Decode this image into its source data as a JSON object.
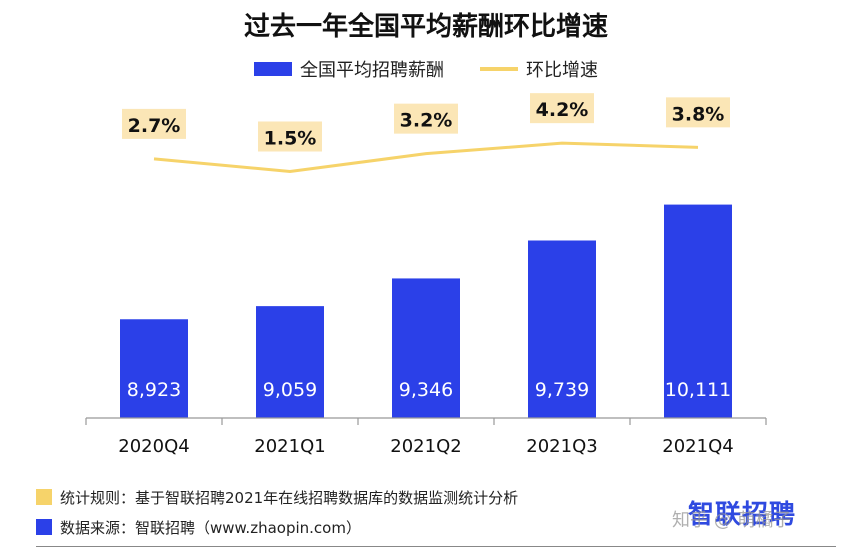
{
  "chart_data": {
    "type": "bar",
    "title": "过去一年全国平均薪酬环比增速",
    "categories": [
      "2020Q4",
      "2021Q1",
      "2021Q2",
      "2021Q3",
      "2021Q4"
    ],
    "series": [
      {
        "name": "全国平均招聘薪酬",
        "kind": "bar",
        "values": [
          8923,
          9059,
          9346,
          9739,
          10111
        ],
        "labels": [
          "8,923",
          "9,059",
          "9,346",
          "9,739",
          "10,111"
        ]
      },
      {
        "name": "环比增速",
        "kind": "line",
        "values": [
          2.7,
          1.5,
          3.2,
          4.2,
          3.8
        ],
        "labels": [
          "2.7%",
          "1.5%",
          "3.2%",
          "4.2%",
          "3.8%"
        ]
      }
    ],
    "bar_ylim": [
      7900,
      10200
    ],
    "line_ylim": [
      -1.5,
      4.5
    ],
    "legend_position": "top-center",
    "grid": false,
    "colors": {
      "bar": "#2b40e8",
      "line": "#f6d36a",
      "label_bg": "#fbe6b6"
    }
  },
  "footnotes": [
    {
      "text": "统计规则：基于智联招聘2021年在线招聘数据库的数据监测统计分析",
      "color": "#f6d36a"
    },
    {
      "text": "数据来源：智联招聘（www.zhaopin.com）",
      "color": "#2b40e8"
    }
  ],
  "brand": "智联招聘",
  "watermark": "知乎 @ 萌橘子"
}
